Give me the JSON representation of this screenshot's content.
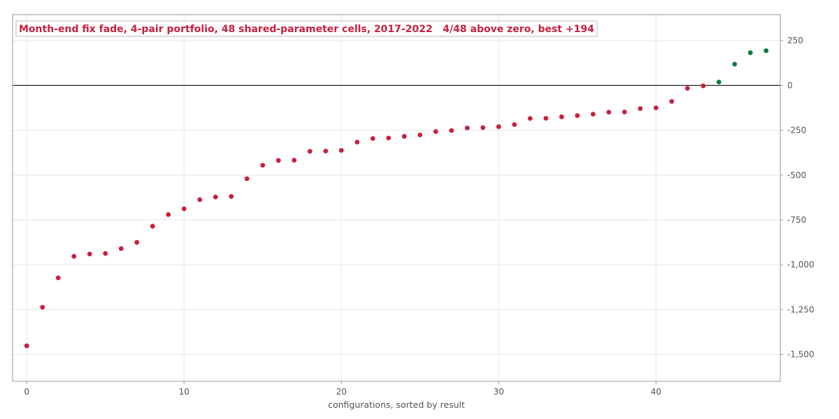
{
  "chart_data": {
    "type": "scatter",
    "title": "Month-end fix fade, 4-pair portfolio, 48 shared-parameter cells, 2017-2022   4/48 above zero, best +194",
    "xlabel": "configurations, sorted by result",
    "ylabel": "",
    "xlim": [
      -0.9,
      47.9
    ],
    "ylim": [
      -1650,
      395
    ],
    "x_ticks": [
      0,
      10,
      20,
      30,
      40
    ],
    "y_ticks": [
      250,
      0,
      -250,
      -500,
      -750,
      -1000,
      -1250,
      -1500
    ],
    "y_tick_labels": [
      "250",
      "0",
      "-250",
      "-500",
      "-750",
      "-1,000",
      "-1,250",
      "-1,500"
    ],
    "y_axis_side": "right",
    "grid": true,
    "zero_line": true,
    "legend": "none",
    "colors": {
      "negative": "#c8203f",
      "positive": "#0a7a3e",
      "title": "#c8203f",
      "grid": "#e6e6e6",
      "frame": "#999999",
      "zero_line": "#222222"
    },
    "x": [
      0,
      1,
      2,
      3,
      4,
      5,
      6,
      7,
      8,
      9,
      10,
      11,
      12,
      13,
      14,
      15,
      16,
      17,
      18,
      19,
      20,
      21,
      22,
      23,
      24,
      25,
      26,
      27,
      28,
      29,
      30,
      31,
      32,
      33,
      34,
      35,
      36,
      37,
      38,
      39,
      40,
      41,
      42,
      43,
      44,
      45,
      46,
      47
    ],
    "values": [
      -1452,
      -1237,
      -1073,
      -953,
      -940,
      -937,
      -910,
      -875,
      -785,
      -720,
      -688,
      -637,
      -622,
      -619,
      -520,
      -445,
      -418,
      -417,
      -367,
      -366,
      -362,
      -316,
      -296,
      -293,
      -284,
      -276,
      -257,
      -251,
      -237,
      -235,
      -230,
      -218,
      -184,
      -183,
      -175,
      -168,
      -160,
      -149,
      -148,
      -129,
      -125,
      -89,
      -16,
      -2,
      19,
      119,
      183,
      194
    ]
  }
}
